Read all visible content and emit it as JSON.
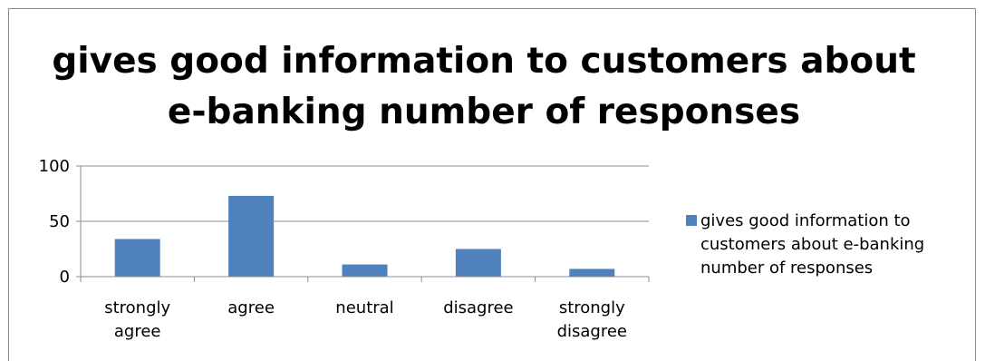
{
  "chart_data": {
    "type": "bar",
    "title_lines": [
      "gives good information to customers about",
      "e-banking number of  responses"
    ],
    "categories": [
      [
        "strongly",
        "agree"
      ],
      [
        "agree"
      ],
      [
        "neutral"
      ],
      [
        "disagree"
      ],
      [
        "strongly",
        "disagree"
      ]
    ],
    "series": [
      {
        "name": "gives good information to customers about e-banking number of  responses",
        "values": [
          34,
          73,
          11,
          25,
          7
        ],
        "color": "#4f81bd"
      }
    ],
    "yticks": [
      0,
      50,
      100
    ],
    "ylim": [
      0,
      100
    ],
    "grid": true,
    "legend_position": "right"
  }
}
